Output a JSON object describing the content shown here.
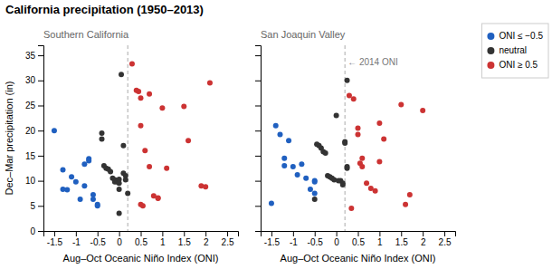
{
  "chart_data": [
    {
      "type": "scatter",
      "title": "California precipitation (1950–2013)",
      "subtitle": "Southern California",
      "xlabel": "Aug–Oct Oceanic Niño Index (ONI)",
      "ylabel": "Dec–Mar precipitation (in)",
      "xlim": [
        -1.75,
        2.75
      ],
      "ylim": [
        0,
        37
      ],
      "xticks": [
        -1.5,
        -1,
        -0.5,
        0,
        0.5,
        1,
        1.5,
        2,
        2.5
      ],
      "yticks": [
        0,
        5,
        10,
        15,
        20,
        25,
        30,
        35
      ],
      "grid": false,
      "legend": "upper right",
      "reference_line_x": 0.2,
      "series": [
        {
          "name": "ONI ≤ −0.5",
          "color": "#2060c0",
          "x": [
            -1.5,
            -1.3,
            -1.3,
            -1.2,
            -1.1,
            -1.0,
            -0.9,
            -0.8,
            -0.8,
            -0.7,
            -0.7,
            -0.6,
            -0.6,
            -0.5,
            -0.5
          ],
          "values": [
            20.0,
            12.2,
            8.3,
            8.2,
            10.8,
            9.8,
            6.3,
            13.3,
            9.0,
            14.4,
            14.0,
            7.2,
            6.3,
            5.3,
            5.0
          ]
        },
        {
          "name": "neutral",
          "color": "#333333",
          "x": [
            -0.4,
            -0.4,
            -0.35,
            -0.3,
            -0.25,
            -0.2,
            -0.15,
            -0.1,
            -0.1,
            -0.05,
            0.0,
            0.0,
            0.0,
            0.05,
            0.0,
            0.1,
            0.1,
            0.15,
            0.15,
            0.2
          ],
          "values": [
            19.5,
            18.3,
            13.0,
            12.5,
            12.3,
            11.8,
            10.5,
            10.2,
            9.8,
            9.8,
            10.3,
            9.5,
            8.3,
            31.2,
            3.5,
            17.0,
            11.5,
            11.0,
            10.2,
            7.5
          ]
        },
        {
          "name": "ONI ≥ 0.5",
          "color": "#cc3333",
          "x": [
            0.3,
            0.4,
            0.45,
            0.5,
            0.5,
            0.6,
            0.7,
            0.7,
            0.8,
            0.9,
            0.9,
            1.0,
            1.1,
            1.5,
            1.6,
            1.9,
            2.0,
            2.1,
            0.5,
            0.55
          ],
          "values": [
            33.3,
            28.0,
            27.8,
            26.5,
            21.0,
            16.0,
            27.3,
            12.8,
            7.0,
            6.6,
            6.5,
            24.5,
            12.5,
            24.8,
            18.0,
            9.0,
            8.8,
            29.5,
            5.3,
            5.0
          ]
        }
      ]
    },
    {
      "type": "scatter",
      "subtitle": "San Joaquin Valley",
      "xlabel": "Aug–Oct Oceanic Niño Index (ONI)",
      "xlim": [
        -1.75,
        2.75
      ],
      "ylim": [
        0,
        37
      ],
      "xticks": [
        -1.5,
        -1,
        -0.5,
        0,
        0.5,
        1,
        1.5,
        2,
        2.5
      ],
      "yticks": [
        0,
        5,
        10,
        15,
        20,
        25,
        30,
        35
      ],
      "tick_labels": "x",
      "grid": false,
      "reference_line_x": 0.2,
      "annotations": [
        {
          "text": "← 2014 ONI",
          "x": 0.2,
          "y": 33.5
        }
      ],
      "series": [
        {
          "color": "#2060c0",
          "x": [
            -1.5,
            -1.4,
            -1.3,
            -1.2,
            -1.2,
            -1.1,
            -1.0,
            -0.9,
            -0.8,
            -0.7,
            -0.6,
            -0.5,
            -0.5,
            -0.5
          ],
          "values": [
            5.5,
            21.0,
            19.2,
            14.5,
            13.0,
            18.0,
            12.8,
            11.2,
            13.3,
            10.5,
            8.3,
            10.0,
            9.8,
            7.5
          ]
        },
        {
          "color": "#333333",
          "x": [
            -0.5,
            -0.45,
            -0.4,
            -0.35,
            -0.3,
            -0.25,
            -0.2,
            -0.15,
            -0.1,
            -0.05,
            0.0,
            0.05,
            0.1,
            0.15,
            0.15,
            0.2,
            0.2,
            0.25,
            0.25,
            0.25
          ],
          "values": [
            6.3,
            17.3,
            17.0,
            16.5,
            15.8,
            15.5,
            11.0,
            10.8,
            10.5,
            10.2,
            23.0,
            10.0,
            10.0,
            9.5,
            9.2,
            17.8,
            17.5,
            30.0,
            12.8,
            12.5
          ]
        },
        {
          "color": "#cc3333",
          "x": [
            0.3,
            0.4,
            0.5,
            0.5,
            0.55,
            0.6,
            0.7,
            0.8,
            0.9,
            1.0,
            1.0,
            1.1,
            1.5,
            1.6,
            1.7,
            2.0,
            0.35,
            0.6
          ],
          "values": [
            27.0,
            26.3,
            20.5,
            19.2,
            13.5,
            12.8,
            9.5,
            8.5,
            8.0,
            21.5,
            13.8,
            18.3,
            25.2,
            5.3,
            7.2,
            24.0,
            4.5,
            14.5
          ]
        }
      ]
    }
  ]
}
